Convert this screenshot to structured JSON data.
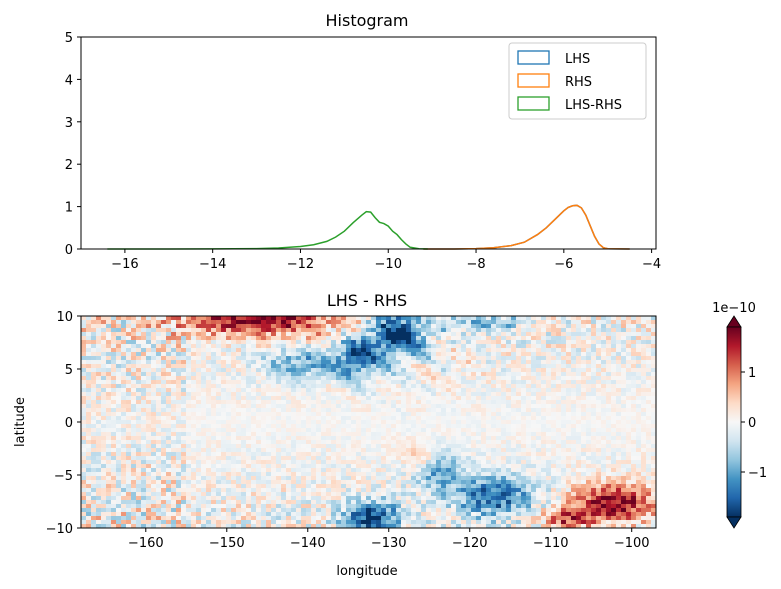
{
  "chart_data": [
    {
      "type": "line",
      "title": "Histogram",
      "xlim": [
        -17,
        -3.9
      ],
      "ylim": [
        0,
        5
      ],
      "x_ticks": [
        -16,
        -14,
        -12,
        -10,
        -8,
        -6,
        -4
      ],
      "y_ticks": [
        0,
        1,
        2,
        3,
        4,
        5
      ],
      "legend_position": "top-right",
      "series": [
        {
          "name": "LHS",
          "color": "#1f77b4",
          "points": [
            [
              -9.2,
              0
            ],
            [
              -8.5,
              0.001
            ],
            [
              -8,
              0.01
            ],
            [
              -7.6,
              0.03
            ],
            [
              -7.2,
              0.08
            ],
            [
              -6.9,
              0.16
            ],
            [
              -6.6,
              0.34
            ],
            [
              -6.4,
              0.5
            ],
            [
              -6.2,
              0.7
            ],
            [
              -6,
              0.9
            ],
            [
              -5.9,
              0.98
            ],
            [
              -5.8,
              1.02
            ],
            [
              -5.7,
              1.03
            ],
            [
              -5.6,
              0.97
            ],
            [
              -5.5,
              0.8
            ],
            [
              -5.4,
              0.55
            ],
            [
              -5.3,
              0.3
            ],
            [
              -5.2,
              0.12
            ],
            [
              -5.1,
              0.03
            ],
            [
              -5,
              0.005
            ],
            [
              -4.5,
              0
            ]
          ]
        },
        {
          "name": "RHS",
          "color": "#ff7f0e",
          "points": [
            [
              -9.2,
              0
            ],
            [
              -8.5,
              0.001
            ],
            [
              -8,
              0.01
            ],
            [
              -7.6,
              0.03
            ],
            [
              -7.2,
              0.08
            ],
            [
              -6.9,
              0.16
            ],
            [
              -6.6,
              0.34
            ],
            [
              -6.4,
              0.5
            ],
            [
              -6.2,
              0.7
            ],
            [
              -6,
              0.9
            ],
            [
              -5.9,
              0.98
            ],
            [
              -5.8,
              1.02
            ],
            [
              -5.7,
              1.03
            ],
            [
              -5.6,
              0.97
            ],
            [
              -5.5,
              0.8
            ],
            [
              -5.4,
              0.55
            ],
            [
              -5.3,
              0.3
            ],
            [
              -5.2,
              0.12
            ],
            [
              -5.1,
              0.03
            ],
            [
              -5,
              0.005
            ],
            [
              -4.5,
              0
            ]
          ]
        },
        {
          "name": "LHS-RHS",
          "color": "#2ca02c",
          "points": [
            [
              -16.4,
              0
            ],
            [
              -15,
              0
            ],
            [
              -14,
              0.002
            ],
            [
              -13,
              0.01
            ],
            [
              -12.5,
              0.025
            ],
            [
              -12,
              0.06
            ],
            [
              -11.7,
              0.1
            ],
            [
              -11.4,
              0.18
            ],
            [
              -11.2,
              0.28
            ],
            [
              -11,
              0.42
            ],
            [
              -10.8,
              0.62
            ],
            [
              -10.6,
              0.8
            ],
            [
              -10.5,
              0.88
            ],
            [
              -10.4,
              0.87
            ],
            [
              -10.3,
              0.74
            ],
            [
              -10.2,
              0.63
            ],
            [
              -10.1,
              0.6
            ],
            [
              -10,
              0.54
            ],
            [
              -9.9,
              0.42
            ],
            [
              -9.8,
              0.34
            ],
            [
              -9.7,
              0.22
            ],
            [
              -9.6,
              0.12
            ],
            [
              -9.5,
              0.04
            ],
            [
              -9.3,
              0.005
            ],
            [
              -9.1,
              0
            ]
          ]
        }
      ]
    },
    {
      "type": "heatmap",
      "title": "LHS - RHS",
      "xlabel": "longitude",
      "ylabel": "latitude",
      "xlim": [
        -168,
        -97
      ],
      "ylim": [
        -10,
        10
      ],
      "x_ticks": [
        -160,
        -150,
        -140,
        -130,
        -120,
        -110,
        -100
      ],
      "y_ticks": [
        -10,
        -5,
        0,
        5,
        10
      ],
      "colormap": "RdBu_r",
      "colorbar": {
        "scale_label": "1e−10",
        "ticks": [
          -1,
          0,
          1
        ],
        "range": [
          -1.9,
          1.9
        ],
        "extend": "both",
        "colors": [
          "#053061",
          "#2166ac",
          "#4393c3",
          "#92c5de",
          "#d1e5f0",
          "#f7f7f7",
          "#fddbc7",
          "#f4a582",
          "#d6604d",
          "#b2182b",
          "#67001f"
        ]
      }
    }
  ]
}
